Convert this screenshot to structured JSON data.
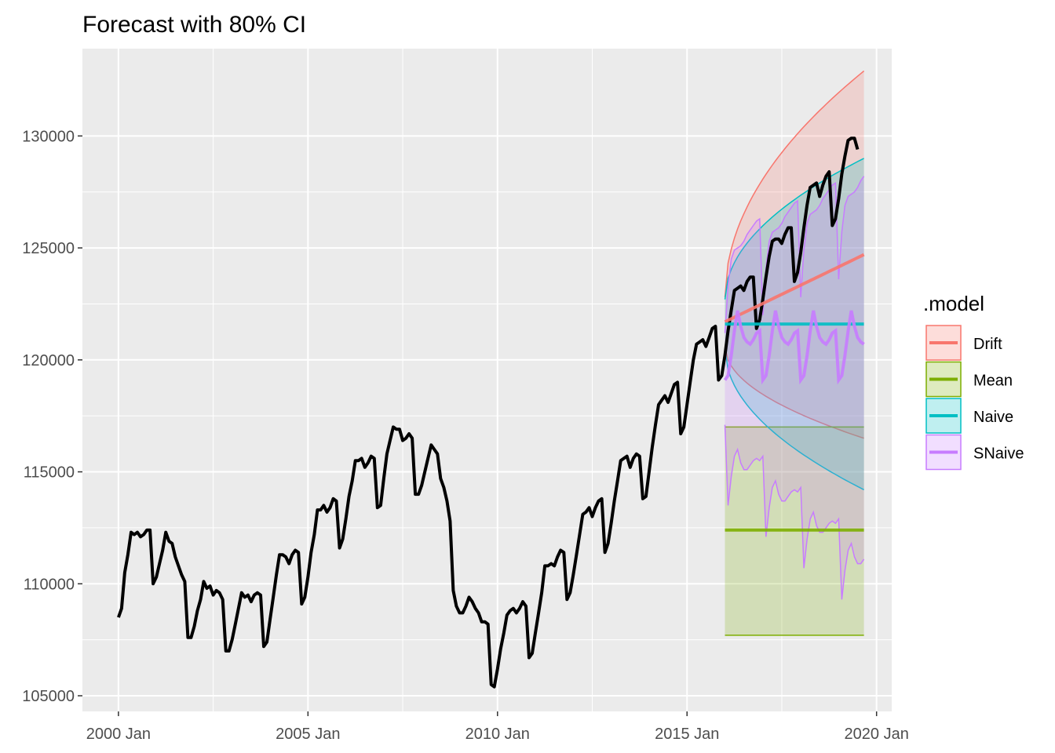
{
  "chart_data": {
    "type": "line",
    "title": "Forecast with 80% CI",
    "xlabel": "",
    "ylabel": "",
    "x_ticks": [
      "2000 Jan",
      "2005 Jan",
      "2010 Jan",
      "2015 Jan",
      "2020 Jan"
    ],
    "y_ticks": [
      "105000",
      "110000",
      "115000",
      "120000",
      "125000",
      "130000"
    ],
    "xlim": [
      1999.05,
      2020.4
    ],
    "ylim": [
      104300,
      133900
    ],
    "grid": true,
    "legend": {
      "title": ".model",
      "placement": "right",
      "entries": [
        {
          "label": "Drift",
          "color": "#F8766D"
        },
        {
          "label": "Mean",
          "color": "#7CAE00"
        },
        {
          "label": "Naive",
          "color": "#00BFC4"
        },
        {
          "label": "SNaive",
          "color": "#C77CFF"
        }
      ]
    },
    "actual": {
      "color": "#000000",
      "start": 2000.0,
      "step": 0.08333,
      "values": [
        108500,
        108900,
        110500,
        111300,
        112300,
        112200,
        112300,
        112100,
        112200,
        112400,
        112400,
        110000,
        110300,
        110900,
        111500,
        112300,
        111900,
        111800,
        111200,
        110800,
        110400,
        110100,
        107600,
        107600,
        108100,
        108800,
        109300,
        110100,
        109800,
        109900,
        109500,
        109700,
        109600,
        109300,
        107000,
        107000,
        107500,
        108200,
        108900,
        109600,
        109400,
        109500,
        109200,
        109500,
        109600,
        109500,
        107200,
        107400,
        108400,
        109400,
        110400,
        111300,
        111300,
        111200,
        110900,
        111300,
        111500,
        111400,
        109100,
        109400,
        110300,
        111400,
        112200,
        113300,
        113300,
        113500,
        113200,
        113400,
        113800,
        113700,
        111600,
        112000,
        112900,
        113900,
        114600,
        115500,
        115500,
        115600,
        115200,
        115400,
        115700,
        115600,
        113400,
        113500,
        114700,
        115800,
        116400,
        117000,
        116900,
        116900,
        116400,
        116500,
        116700,
        116500,
        114000,
        114000,
        114400,
        115000,
        115600,
        116200,
        116000,
        115800,
        114700,
        114300,
        113700,
        112800,
        109700,
        109000,
        108700,
        108700,
        109000,
        109400,
        109200,
        108900,
        108700,
        108300,
        108300,
        108200,
        105500,
        105400,
        106200,
        107100,
        107800,
        108600,
        108800,
        108900,
        108700,
        108900,
        109200,
        109000,
        106700,
        106900,
        107800,
        108700,
        109600,
        110800,
        110800,
        110900,
        110800,
        111200,
        111500,
        111400,
        109300,
        109600,
        110400,
        111300,
        112200,
        113100,
        113200,
        113400,
        113000,
        113400,
        113700,
        113800,
        111400,
        111800,
        112700,
        113700,
        114600,
        115500,
        115600,
        115700,
        115200,
        115600,
        115800,
        115700,
        113800,
        113900,
        115000,
        116100,
        117100,
        118000,
        118200,
        118400,
        118100,
        118500,
        118900,
        119000,
        116700,
        117000,
        118000,
        119000,
        120000,
        120700,
        120800,
        120900,
        120600,
        121000,
        121400,
        121500,
        119100,
        119300,
        120200,
        121300,
        122200,
        123100,
        123200,
        123300,
        123100,
        123500,
        123700,
        123700,
        121400,
        121800,
        122700,
        123700,
        124600,
        125300,
        125400,
        125400,
        125200,
        125600,
        125900,
        125900,
        123500,
        123900,
        124800,
        125900,
        126900,
        127700,
        127800,
        127900,
        127300,
        127800,
        128200,
        128400,
        126000,
        126300,
        127200,
        128300,
        129100,
        129800,
        129900,
        129900,
        129400
      ]
    },
    "forecast_start": 2016.0,
    "forecast_end": 2019.67,
    "series": [
      {
        "name": "Drift",
        "color": "#F8766D",
        "point": [
          121700,
          124700
        ],
        "lower": [
          120600,
          116500
        ],
        "upper": [
          122800,
          132900
        ]
      },
      {
        "name": "Mean",
        "color": "#7CAE00",
        "point": [
          112400,
          112400
        ],
        "lower": [
          107700,
          107700
        ],
        "upper": [
          117000,
          117000
        ]
      },
      {
        "name": "Naive",
        "color": "#00BFC4",
        "point": [
          121600,
          121600
        ],
        "lower": [
          120500,
          114200
        ],
        "upper": [
          122700,
          129000
        ]
      },
      {
        "name": "SNaive",
        "color": "#C77CFF",
        "point_pattern": [
          119100,
          119300,
          120200,
          121300,
          122200,
          121500,
          121000,
          120800,
          120700,
          120900,
          121200,
          121300
        ],
        "lower_pattern": [
          117100,
          113500,
          114800,
          115700,
          116000,
          115400,
          115100,
          115100,
          115300,
          115500,
          115600,
          115500
        ],
        "upper_pattern": [
          121200,
          123300,
          124500,
          124900,
          125000,
          125100,
          125300,
          125600,
          125800,
          126000,
          126200,
          126300
        ]
      }
    ]
  }
}
